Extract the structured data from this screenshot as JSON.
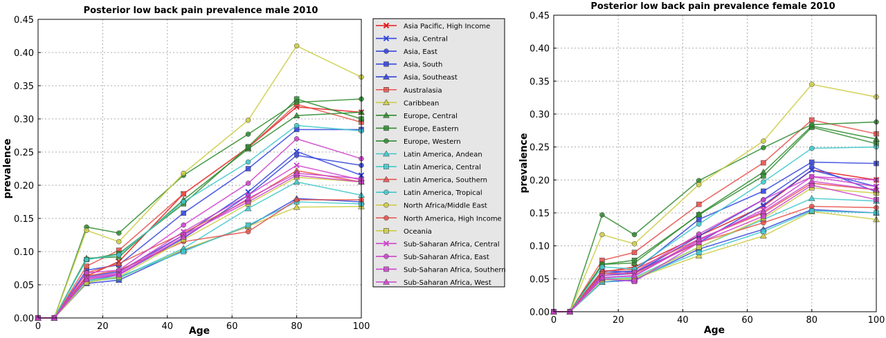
{
  "chart_data": [
    {
      "type": "line",
      "title": "Posterior low back pain prevalence male 2010",
      "xlabel": "Age",
      "ylabel": "prevalence",
      "xlim": [
        0,
        100
      ],
      "ylim": [
        0,
        0.45
      ],
      "xticks": [
        "0",
        "20",
        "40",
        "60",
        "80",
        "100"
      ],
      "yticks": [
        "0.00",
        "0.05",
        "0.10",
        "0.15",
        "0.20",
        "0.25",
        "0.30",
        "0.35",
        "0.40",
        "0.45"
      ],
      "grid": true,
      "x": [
        0,
        5,
        15,
        25,
        45,
        65,
        80,
        100
      ],
      "series": [
        {
          "name": "Asia Pacific, High Income",
          "color": "#e41a1c",
          "marker": "x",
          "values": [
            0,
            0,
            0.063,
            0.085,
            0.187,
            0.257,
            0.318,
            0.31
          ]
        },
        {
          "name": "Asia, Central",
          "color": "#3344dd",
          "marker": "x",
          "values": [
            0,
            0,
            0.062,
            0.07,
            0.125,
            0.19,
            0.251,
            0.215
          ]
        },
        {
          "name": "Asia, East",
          "color": "#3344dd",
          "marker": "o",
          "values": [
            0,
            0,
            0.056,
            0.065,
            0.12,
            0.185,
            0.245,
            0.23
          ]
        },
        {
          "name": "Asia, South",
          "color": "#3344dd",
          "marker": "s",
          "values": [
            0,
            0,
            0.072,
            0.08,
            0.158,
            0.225,
            0.284,
            0.284
          ]
        },
        {
          "name": "Asia, Southeast",
          "color": "#3344dd",
          "marker": "^",
          "values": [
            0,
            0,
            0.052,
            0.057,
            0.102,
            0.138,
            0.18,
            0.175
          ]
        },
        {
          "name": "Australasia",
          "color": "#e8504a",
          "marker": "s",
          "values": [
            0,
            0,
            0.078,
            0.102,
            0.187,
            0.257,
            0.322,
            0.295
          ]
        },
        {
          "name": "Caribbean",
          "color": "#cccc44",
          "marker": "^",
          "values": [
            0,
            0,
            0.057,
            0.06,
            0.103,
            0.138,
            0.167,
            0.168
          ]
        },
        {
          "name": "Europe, Central",
          "color": "#2e8b2e",
          "marker": "^",
          "values": [
            0,
            0,
            0.09,
            0.092,
            0.178,
            0.255,
            0.305,
            0.31
          ]
        },
        {
          "name": "Europe, Eastern",
          "color": "#2e8b2e",
          "marker": "s",
          "values": [
            0,
            0,
            0.088,
            0.097,
            0.172,
            0.258,
            0.33,
            0.3
          ]
        },
        {
          "name": "Europe, Western",
          "color": "#2e8b2e",
          "marker": "o",
          "values": [
            0,
            0,
            0.137,
            0.128,
            0.215,
            0.277,
            0.325,
            0.33
          ]
        },
        {
          "name": "Latin America, Andean",
          "color": "#40c8cc",
          "marker": "^",
          "values": [
            0,
            0,
            0.055,
            0.06,
            0.105,
            0.165,
            0.205,
            0.185
          ]
        },
        {
          "name": "Latin America, Central",
          "color": "#40c8cc",
          "marker": "s",
          "values": [
            0,
            0,
            0.057,
            0.062,
            0.1,
            0.14,
            0.175,
            0.172
          ]
        },
        {
          "name": "Latin America, Southern",
          "color": "#e8504a",
          "marker": "^",
          "values": [
            0,
            0,
            0.068,
            0.082,
            0.128,
            0.178,
            0.222,
            0.205
          ]
        },
        {
          "name": "Latin America, Tropical",
          "color": "#40c8cc",
          "marker": "o",
          "values": [
            0,
            0,
            0.088,
            0.095,
            0.175,
            0.235,
            0.29,
            0.282
          ]
        },
        {
          "name": "North Africa/Middle East",
          "color": "#cccc44",
          "marker": "o",
          "values": [
            0,
            0,
            0.132,
            0.115,
            0.218,
            0.298,
            0.41,
            0.363
          ]
        },
        {
          "name": "North America, High Income",
          "color": "#e8504a",
          "marker": "o",
          "values": [
            0,
            0,
            0.063,
            0.072,
            0.115,
            0.13,
            0.178,
            0.178
          ]
        },
        {
          "name": "Oceania",
          "color": "#cccc44",
          "marker": "s",
          "values": [
            0,
            0,
            0.053,
            0.062,
            0.118,
            0.172,
            0.212,
            0.205
          ]
        },
        {
          "name": "Sub-Saharan Africa, Central",
          "color": "#cc44cc",
          "marker": "x",
          "values": [
            0,
            0,
            0.06,
            0.068,
            0.13,
            0.185,
            0.23,
            0.208
          ]
        },
        {
          "name": "Sub-Saharan Africa, East",
          "color": "#cc44cc",
          "marker": "o",
          "values": [
            0,
            0,
            0.068,
            0.072,
            0.14,
            0.203,
            0.27,
            0.24
          ]
        },
        {
          "name": "Sub-Saharan Africa, Southern",
          "color": "#cc44cc",
          "marker": "s",
          "values": [
            0,
            0,
            0.06,
            0.066,
            0.125,
            0.175,
            0.215,
            0.205
          ]
        },
        {
          "name": "Sub-Saharan Africa, West",
          "color": "#cc44cc",
          "marker": "^",
          "values": [
            0,
            0,
            0.058,
            0.065,
            0.122,
            0.18,
            0.218,
            0.21
          ]
        }
      ]
    },
    {
      "type": "line",
      "title": "Posterior low back pain prevalence female 2010",
      "xlabel": "Age",
      "ylabel": "prevalence",
      "xlim": [
        0,
        100
      ],
      "ylim": [
        0,
        0.45
      ],
      "xticks": [
        "0",
        "20",
        "40",
        "60",
        "80",
        "100"
      ],
      "yticks": [
        "0.00",
        "0.05",
        "0.10",
        "0.15",
        "0.20",
        "0.25",
        "0.30",
        "0.35",
        "0.40",
        "0.45"
      ],
      "grid": true,
      "x": [
        0,
        5,
        15,
        25,
        45,
        65,
        80,
        100
      ],
      "series": [
        {
          "name": "Asia Pacific, High Income",
          "color": "#e41a1c",
          "marker": "x",
          "values": [
            0,
            0,
            0.06,
            0.068,
            0.115,
            0.16,
            0.215,
            0.2
          ]
        },
        {
          "name": "Asia, Central",
          "color": "#3344dd",
          "marker": "x",
          "values": [
            0,
            0,
            0.062,
            0.06,
            0.105,
            0.162,
            0.215,
            0.19
          ]
        },
        {
          "name": "Asia, East",
          "color": "#3344dd",
          "marker": "o",
          "values": [
            0,
            0,
            0.055,
            0.058,
            0.115,
            0.17,
            0.22,
            0.182
          ]
        },
        {
          "name": "Asia, South",
          "color": "#3344dd",
          "marker": "s",
          "values": [
            0,
            0,
            0.058,
            0.062,
            0.14,
            0.183,
            0.227,
            0.225
          ]
        },
        {
          "name": "Asia, Southeast",
          "color": "#3344dd",
          "marker": "^",
          "values": [
            0,
            0,
            0.045,
            0.048,
            0.095,
            0.125,
            0.155,
            0.15
          ]
        },
        {
          "name": "Australasia",
          "color": "#e8504a",
          "marker": "s",
          "values": [
            0,
            0,
            0.078,
            0.09,
            0.163,
            0.226,
            0.291,
            0.27
          ]
        },
        {
          "name": "Caribbean",
          "color": "#cccc44",
          "marker": "^",
          "values": [
            0,
            0,
            0.05,
            0.05,
            0.085,
            0.115,
            0.152,
            0.14
          ]
        },
        {
          "name": "Europe, Central",
          "color": "#2e8b2e",
          "marker": "^",
          "values": [
            0,
            0,
            0.072,
            0.074,
            0.148,
            0.212,
            0.282,
            0.262
          ]
        },
        {
          "name": "Europe, Eastern",
          "color": "#2e8b2e",
          "marker": "s",
          "values": [
            0,
            0,
            0.072,
            0.078,
            0.147,
            0.206,
            0.28,
            0.255
          ]
        },
        {
          "name": "Europe, Western",
          "color": "#2e8b2e",
          "marker": "o",
          "values": [
            0,
            0,
            0.147,
            0.117,
            0.199,
            0.249,
            0.284,
            0.288
          ]
        },
        {
          "name": "Latin America, Andean",
          "color": "#40c8cc",
          "marker": "^",
          "values": [
            0,
            0,
            0.05,
            0.052,
            0.098,
            0.14,
            0.172,
            0.168
          ]
        },
        {
          "name": "Latin America, Central",
          "color": "#40c8cc",
          "marker": "s",
          "values": [
            0,
            0,
            0.045,
            0.05,
            0.09,
            0.122,
            0.153,
            0.15
          ]
        },
        {
          "name": "Latin America, Southern",
          "color": "#e8504a",
          "marker": "^",
          "values": [
            0,
            0,
            0.062,
            0.064,
            0.11,
            0.15,
            0.195,
            0.185
          ]
        },
        {
          "name": "Latin America, Tropical",
          "color": "#40c8cc",
          "marker": "o",
          "values": [
            0,
            0,
            0.068,
            0.065,
            0.133,
            0.197,
            0.248,
            0.25
          ]
        },
        {
          "name": "North Africa/Middle East",
          "color": "#cccc44",
          "marker": "o",
          "values": [
            0,
            0,
            0.117,
            0.103,
            0.193,
            0.259,
            0.345,
            0.326
          ]
        },
        {
          "name": "North America, High Income",
          "color": "#e8504a",
          "marker": "o",
          "values": [
            0,
            0,
            0.058,
            0.058,
            0.105,
            0.135,
            0.16,
            0.158
          ]
        },
        {
          "name": "Oceania",
          "color": "#cccc44",
          "marker": "s",
          "values": [
            0,
            0,
            0.048,
            0.05,
            0.098,
            0.142,
            0.188,
            0.18
          ]
        },
        {
          "name": "Sub-Saharan Africa, Central",
          "color": "#cc44cc",
          "marker": "x",
          "values": [
            0,
            0,
            0.052,
            0.054,
            0.108,
            0.155,
            0.205,
            0.19
          ]
        },
        {
          "name": "Sub-Saharan Africa, East",
          "color": "#cc44cc",
          "marker": "o",
          "values": [
            0,
            0,
            0.055,
            0.06,
            0.118,
            0.17,
            0.205,
            0.2
          ]
        },
        {
          "name": "Sub-Saharan Africa, Southern",
          "color": "#cc44cc",
          "marker": "s",
          "values": [
            0,
            0,
            0.05,
            0.046,
            0.105,
            0.145,
            0.192,
            0.17
          ]
        },
        {
          "name": "Sub-Saharan Africa, West",
          "color": "#cc44cc",
          "marker": "^",
          "values": [
            0,
            0,
            0.052,
            0.055,
            0.11,
            0.152,
            0.198,
            0.185
          ]
        }
      ]
    }
  ]
}
